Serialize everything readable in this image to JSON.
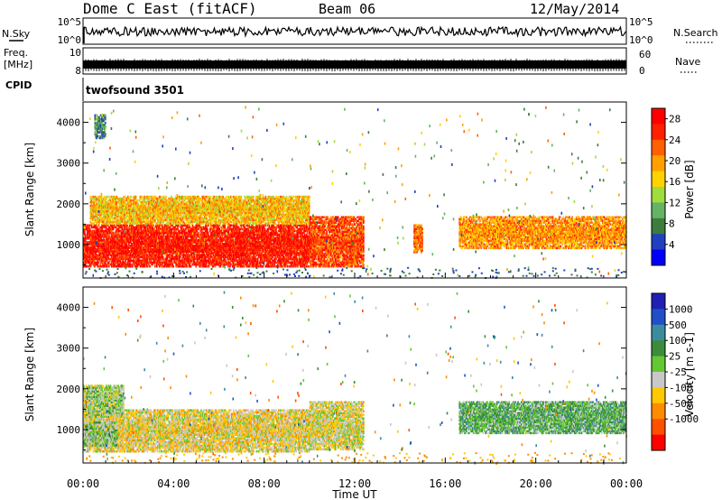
{
  "header": {
    "title": "Dome C East (fitACF)",
    "beam": "Beam 06",
    "date": "12/May/2014"
  },
  "top_panels": {
    "nsky_label": "N.Sky",
    "nsky_ticks": [
      "10^5",
      "10^0"
    ],
    "nsearch_label": "N.Search",
    "nsearch_ticks": [
      "10^5",
      "10^0"
    ],
    "freq_label_1": "Freq.",
    "freq_label_2": "[MHz]",
    "freq_ticks": [
      "10",
      "8"
    ],
    "nave_label": "Nave",
    "nave_ticks": [
      "60",
      "0"
    ],
    "cpid_label": "CPID",
    "cpid_value": "twofsound 3501"
  },
  "colors": {
    "power_scale": [
      "#0000ff",
      "#2040c0",
      "#3c7c3c",
      "#64b464",
      "#a0dc3c",
      "#ffd200",
      "#ffa000",
      "#ff6000",
      "#ff2000",
      "#ff0000"
    ],
    "velocity_scale": [
      "#ff0000",
      "#ff5000",
      "#ff8c00",
      "#ffc800",
      "#c8c8c8",
      "#64c832",
      "#3c8c3c",
      "#3c8ca0",
      "#2050c8",
      "#2020b4"
    ]
  },
  "chart_data": [
    {
      "type": "heatmap",
      "name": "power-panel",
      "xlabel": "",
      "ylabel": "Slant Range [km]",
      "x_ticks": [
        "00:00",
        "04:00",
        "08:00",
        "12:00",
        "16:00",
        "20:00",
        "00:00"
      ],
      "xlim": [
        0,
        24
      ],
      "ylim": [
        180,
        4500
      ],
      "y_ticks": [
        1000,
        2000,
        3000,
        4000
      ],
      "colorbar": {
        "label": "Power [dB]",
        "ticks": [
          "4",
          "8",
          "12",
          "16",
          "20",
          "24",
          "28"
        ],
        "range": [
          0,
          30
        ]
      },
      "regions": [
        {
          "t0": 0.0,
          "t1": 10.0,
          "r0": 450,
          "r1": 1500,
          "value": 27
        },
        {
          "t0": 0.3,
          "t1": 10.0,
          "r0": 1500,
          "r1": 2200,
          "value": 18
        },
        {
          "t0": 10.0,
          "t1": 12.4,
          "r0": 450,
          "r1": 1700,
          "value": 24
        },
        {
          "t0": 16.6,
          "t1": 24.0,
          "r0": 900,
          "r1": 1700,
          "value": 20
        },
        {
          "t0": 14.6,
          "t1": 15.0,
          "r0": 800,
          "r1": 1500,
          "value": 22
        },
        {
          "t0": 0.5,
          "t1": 1.0,
          "r0": 3600,
          "r1": 4200,
          "value": 8
        }
      ]
    },
    {
      "type": "heatmap",
      "name": "velocity-panel",
      "xlabel": "Time UT",
      "ylabel": "Slant Range [km]",
      "x_ticks": [
        "00:00",
        "04:00",
        "08:00",
        "12:00",
        "16:00",
        "20:00",
        "00:00"
      ],
      "xlim": [
        0,
        24
      ],
      "ylim": [
        180,
        4500
      ],
      "y_ticks": [
        1000,
        2000,
        3000,
        4000
      ],
      "colorbar": {
        "label": "Velocity [m s-1]",
        "ticks": [
          "1000",
          "500",
          "100",
          "25",
          "-25",
          "-100",
          "-500",
          "-1000"
        ],
        "range": [
          -1000,
          1000
        ]
      },
      "regions": [
        {
          "t0": 0.0,
          "t1": 10.0,
          "r0": 450,
          "r1": 1500,
          "value": -200
        },
        {
          "t0": 0.0,
          "t1": 1.8,
          "r0": 1300,
          "r1": 2100,
          "value": 0
        },
        {
          "t0": 0.0,
          "t1": 1.5,
          "r0": 600,
          "r1": 1200,
          "value": 60
        },
        {
          "t0": 10.0,
          "t1": 12.4,
          "r0": 500,
          "r1": 1700,
          "value": -150
        },
        {
          "t0": 16.6,
          "t1": 24.0,
          "r0": 900,
          "r1": 1700,
          "value": 200
        }
      ]
    }
  ]
}
